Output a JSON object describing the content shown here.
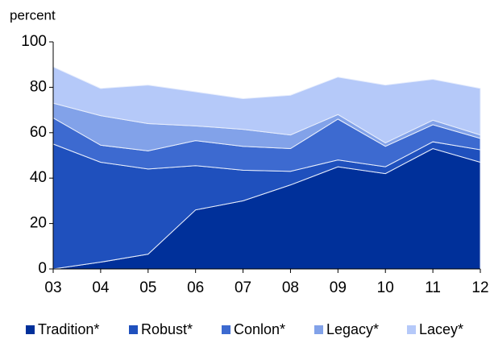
{
  "chart_data": {
    "type": "stacked-area",
    "y_axis_label": "percent",
    "categories": [
      "03",
      "04",
      "05",
      "06",
      "07",
      "08",
      "09",
      "10",
      "11",
      "12"
    ],
    "series": [
      {
        "name": "Tradition*",
        "color": "#00309a",
        "values": [
          0,
          3,
          6.5,
          26,
          30,
          37,
          45,
          42,
          53,
          47
        ]
      },
      {
        "name": "Robust*",
        "color": "#1f50bd",
        "values": [
          55,
          44,
          37.5,
          19.5,
          13.5,
          6,
          3,
          3,
          3,
          5.5
        ]
      },
      {
        "name": "Conlon*",
        "color": "#3d6ad0",
        "values": [
          11.5,
          7.5,
          8,
          11,
          10.5,
          10,
          18,
          9,
          7.5,
          5
        ]
      },
      {
        "name": "Legacy*",
        "color": "#82a2e9",
        "values": [
          6.5,
          13,
          12,
          6.5,
          7.5,
          6,
          2,
          1.5,
          2,
          1.5
        ]
      },
      {
        "name": "Lacey*",
        "color": "#b5c9f9",
        "values": [
          16,
          12,
          17,
          15,
          13.5,
          17.5,
          16.5,
          25.5,
          18,
          20.5
        ]
      }
    ],
    "ylim": [
      0,
      100
    ],
    "yticks": [
      0,
      20,
      40,
      60,
      80,
      100
    ]
  }
}
